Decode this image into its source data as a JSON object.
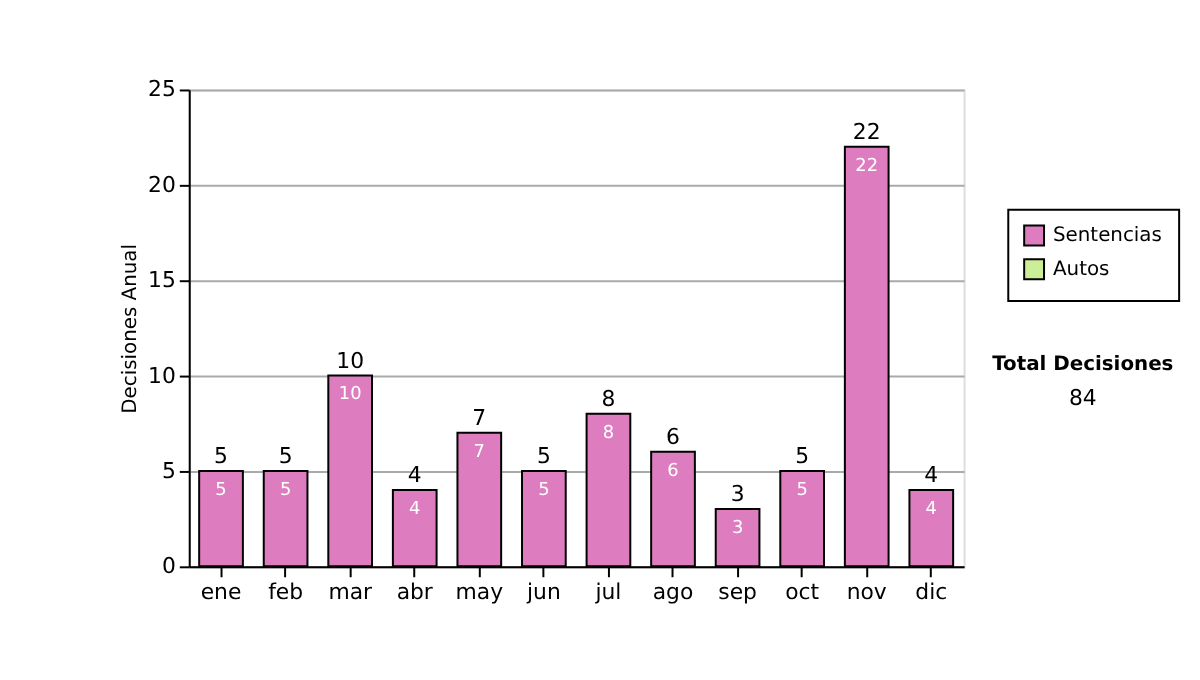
{
  "chart_data": {
    "type": "bar",
    "stacked": true,
    "categories": [
      "ene",
      "feb",
      "mar",
      "abr",
      "may",
      "jun",
      "jul",
      "ago",
      "sep",
      "oct",
      "nov",
      "dic"
    ],
    "series": [
      {
        "name": "Sentencias",
        "color": "#dd7dbf",
        "values": [
          5,
          5,
          10,
          4,
          7,
          5,
          8,
          6,
          3,
          5,
          22,
          4
        ],
        "value_labels": [
          "5",
          "5",
          "10",
          "4",
          "7",
          "5",
          "8",
          "6",
          "3",
          "5",
          "22",
          "4"
        ]
      },
      {
        "name": "Autos",
        "color": "#ccee99",
        "values": [
          0,
          0,
          0,
          0,
          0,
          0,
          0,
          0,
          0,
          0,
          0,
          0
        ]
      }
    ],
    "totals": [
      "5",
      "5",
      "10",
      "4",
      "7",
      "5",
      "8",
      "6",
      "3",
      "5",
      "22",
      "4"
    ],
    "ylabel": "Decisiones Anual",
    "ylim": [
      0,
      25
    ],
    "yticks": [
      0,
      5,
      10,
      15,
      20,
      25
    ],
    "grid": "y",
    "legend": "right",
    "annotations": [
      "Total Decisiones",
      "84"
    ]
  }
}
